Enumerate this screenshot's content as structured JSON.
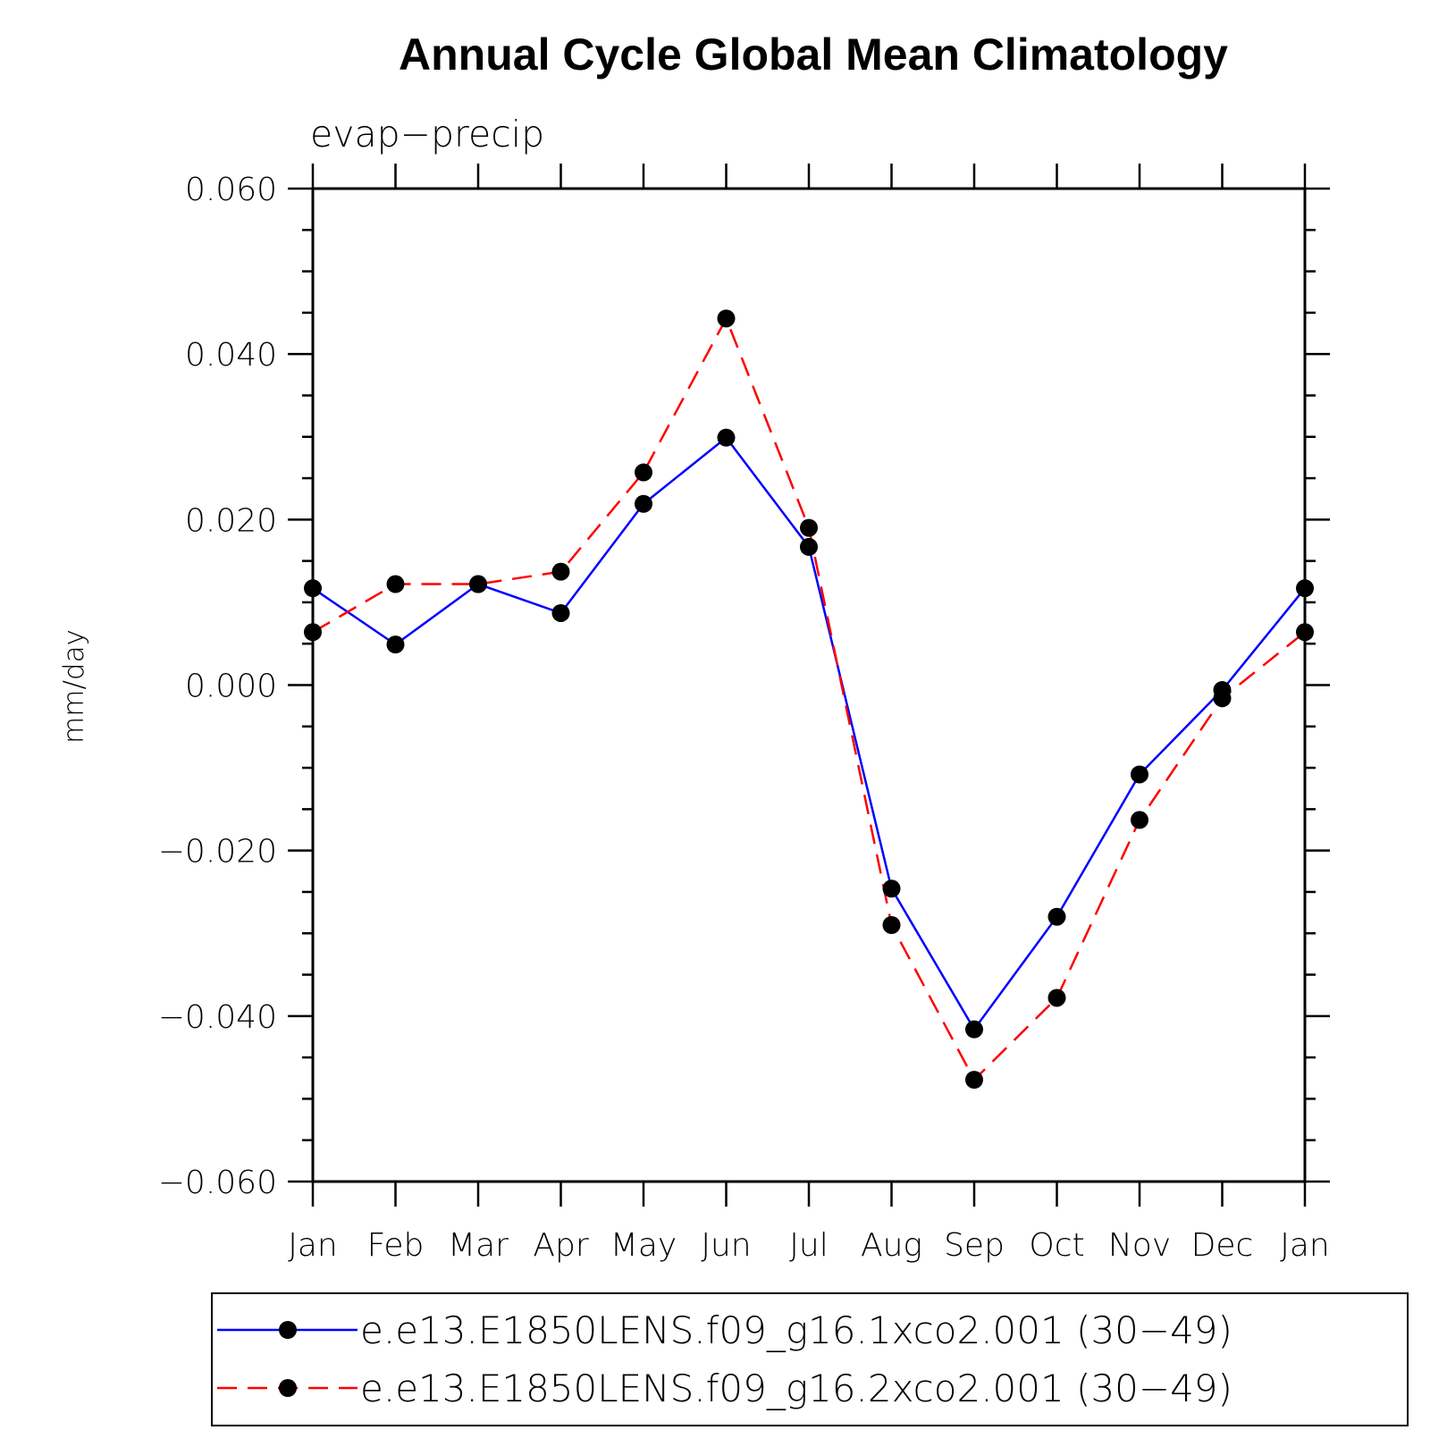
{
  "chart_data": {
    "type": "line",
    "title": "Annual Cycle Global Mean Climatology",
    "subtitle": "evap−precip",
    "ylabel": "mm/day",
    "xlabel": "",
    "categories": [
      "Jan",
      "Feb",
      "Mar",
      "Apr",
      "May",
      "Jun",
      "Jul",
      "Aug",
      "Sep",
      "Oct",
      "Nov",
      "Dec",
      "Jan"
    ],
    "ylim": [
      -0.06,
      0.06
    ],
    "yticks": [
      -0.06,
      -0.04,
      -0.02,
      0.0,
      0.02,
      0.04,
      0.06
    ],
    "ytick_labels": [
      "−0.060",
      "−0.040",
      "−0.020",
      "0.000",
      "0.020",
      "0.040",
      "0.060"
    ],
    "grid": false,
    "legend_position": "bottom",
    "series": [
      {
        "name": "e.e13.E1850LENS.f09_g16.1xco2.001 (30−49)",
        "color": "#0000ff",
        "line_style": "solid",
        "marker": "filled-circle",
        "values": [
          0.0117,
          0.0049,
          0.0122,
          0.0087,
          0.0219,
          0.0299,
          0.0167,
          -0.0246,
          -0.0416,
          -0.028,
          -0.0108,
          -0.0006,
          0.0117
        ]
      },
      {
        "name": "e.e13.E1850LENS.f09_g16.2xco2.001 (30−49)",
        "color": "#ff0000",
        "line_style": "dashed",
        "marker": "filled-circle",
        "values": [
          0.0064,
          0.0122,
          0.0122,
          0.0137,
          0.0257,
          0.0443,
          0.019,
          -0.029,
          -0.0477,
          -0.0378,
          -0.0163,
          -0.0016,
          0.0064
        ]
      }
    ]
  }
}
